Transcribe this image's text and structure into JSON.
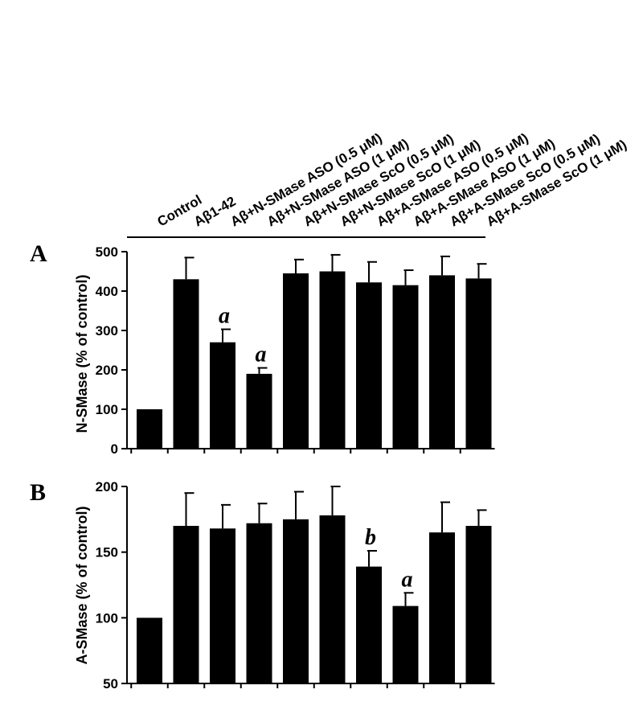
{
  "categories": [
    "Control",
    "Aβ1-42",
    "Aβ+N-SMase ASO (0.5 μM)",
    "Aβ+N-SMase ASO (1 μM)",
    "Aβ+N-SMase ScO (0.5 μM)",
    "Aβ+N-SMase ScO (1 μM)",
    "Aβ+A-SMase ASO (0.5 μM)",
    "Aβ+A-SMase ASO (1 μM)",
    "Aβ+A-SMase ScO (0.5 μM)",
    "Aβ+A-SMase ScO (1 μM)"
  ],
  "chart_data": [
    {
      "type": "bar",
      "panel": "A",
      "ylabel": "N-SMase (% of control)",
      "ylim": [
        0,
        500
      ],
      "yticks": [
        0,
        100,
        200,
        300,
        400,
        500
      ],
      "categories": [
        "Control",
        "Aβ1-42",
        "Aβ+N-SMase ASO (0.5 μM)",
        "Aβ+N-SMase ASO (1 μM)",
        "Aβ+N-SMase ScO (0.5 μM)",
        "Aβ+N-SMase ScO (1 μM)",
        "Aβ+A-SMase ASO (0.5 μM)",
        "Aβ+A-SMase ASO (1 μM)",
        "Aβ+A-SMase ScO (0.5 μM)",
        "Aβ+A-SMase ScO (1 μM)"
      ],
      "values": [
        100,
        430,
        270,
        190,
        445,
        450,
        422,
        415,
        440,
        432
      ],
      "errors": [
        0,
        55,
        33,
        15,
        35,
        42,
        52,
        38,
        48,
        37
      ],
      "annotations": [
        "",
        "",
        "a",
        "a",
        "",
        "",
        "",
        "",
        "",
        ""
      ],
      "bar_color": "#000000"
    },
    {
      "type": "bar",
      "panel": "B",
      "ylabel": "A-SMase (% of control)",
      "ylim": [
        50,
        200
      ],
      "yticks": [
        50,
        100,
        150,
        200
      ],
      "categories": [
        "Control",
        "Aβ1-42",
        "Aβ+N-SMase ASO (0.5 μM)",
        "Aβ+N-SMase ASO (1 μM)",
        "Aβ+N-SMase ScO (0.5 μM)",
        "Aβ+N-SMase ScO (1 μM)",
        "Aβ+A-SMase ASO (0.5 μM)",
        "Aβ+A-SMase ASO (1 μM)",
        "Aβ+A-SMase ScO (0.5 μM)",
        "Aβ+A-SMase ScO (1 μM)"
      ],
      "values": [
        100,
        170,
        168,
        172,
        175,
        178,
        139,
        109,
        165,
        170
      ],
      "errors": [
        0,
        25,
        18,
        15,
        21,
        22,
        12,
        10,
        23,
        12
      ],
      "annotations": [
        "",
        "",
        "",
        "",
        "",
        "",
        "b",
        "a",
        "",
        ""
      ],
      "bar_color": "#000000"
    }
  ]
}
